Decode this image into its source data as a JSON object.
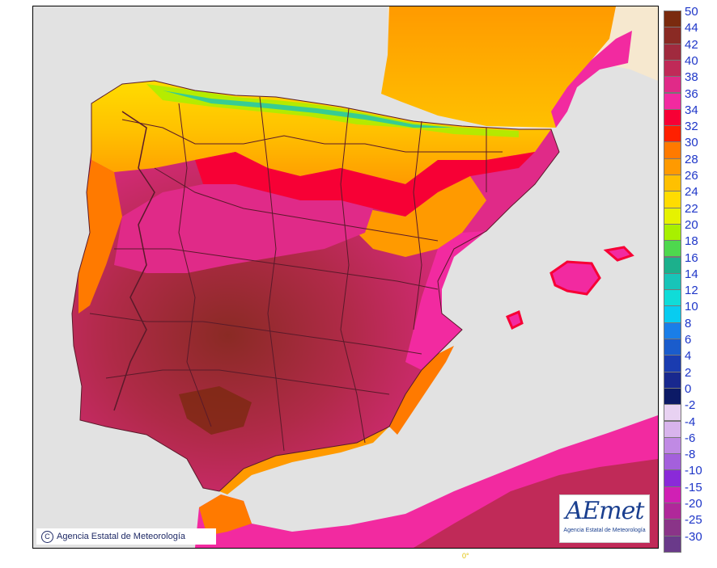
{
  "map": {
    "copyright": "Agencia Estatal de Meteorología",
    "logo_text": "AEmet",
    "logo_subtitle": "Agencia Estatal de Meteorología",
    "longitude_label": "0°",
    "colors": {
      "sea": "#e2e2e2",
      "land_france": "#f6e8cf",
      "border": "#5a1a2a"
    }
  },
  "legend": {
    "entries": [
      {
        "label": "50",
        "color": "#7a2a0e"
      },
      {
        "label": "44",
        "color": "#8a2a24"
      },
      {
        "label": "42",
        "color": "#a02a3e"
      },
      {
        "label": "40",
        "color": "#c02a58"
      },
      {
        "label": "38",
        "color": "#e02a88"
      },
      {
        "label": "36",
        "color": "#f22aa0"
      },
      {
        "label": "34",
        "color": "#f70035"
      },
      {
        "label": "32",
        "color": "#ff2000"
      },
      {
        "label": "30",
        "color": "#ff7a00"
      },
      {
        "label": "28",
        "color": "#ff9a00"
      },
      {
        "label": "26",
        "color": "#ffc000"
      },
      {
        "label": "24",
        "color": "#ffdc00"
      },
      {
        "label": "22",
        "color": "#e6f200"
      },
      {
        "label": "20",
        "color": "#a8f000"
      },
      {
        "label": "18",
        "color": "#4ed84e"
      },
      {
        "label": "16",
        "color": "#1cb08c"
      },
      {
        "label": "14",
        "color": "#18c4b8"
      },
      {
        "label": "12",
        "color": "#10dcd8"
      },
      {
        "label": "10",
        "color": "#08ccf0"
      },
      {
        "label": "8",
        "color": "#1a7ee8"
      },
      {
        "label": "6",
        "color": "#1a5ccc"
      },
      {
        "label": "4",
        "color": "#1a3cb0"
      },
      {
        "label": "2",
        "color": "#18288e"
      },
      {
        "label": "0",
        "color": "#0c1a66"
      },
      {
        "label": "-2",
        "color": "#e8d2f2"
      },
      {
        "label": "-4",
        "color": "#d8b4ec"
      },
      {
        "label": "-6",
        "color": "#c08ae4"
      },
      {
        "label": "-8",
        "color": "#a460dc"
      },
      {
        "label": "-10",
        "color": "#8a2ad8"
      },
      {
        "label": "-15",
        "color": "#d020b4"
      },
      {
        "label": "-20",
        "color": "#b0289a"
      },
      {
        "label": "-25",
        "color": "#8a3488"
      },
      {
        "label": "-30",
        "color": "#6a3a8a"
      }
    ]
  }
}
